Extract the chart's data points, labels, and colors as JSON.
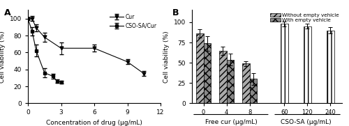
{
  "panel_A": {
    "cur_x": [
      0,
      0.375,
      0.75,
      1.5,
      3,
      6,
      9,
      10.5
    ],
    "cur_y": [
      100,
      100,
      89,
      78,
      65,
      65,
      49,
      35
    ],
    "cur_err": [
      1,
      3,
      4,
      5,
      7,
      4,
      3,
      3
    ],
    "cso_x": [
      0,
      0.375,
      0.75,
      1.5,
      2.25,
      2.625,
      3.0
    ],
    "cso_y": [
      100,
      85,
      62,
      36,
      32,
      26,
      25
    ],
    "cso_err": [
      1,
      5,
      7,
      5,
      3,
      2,
      2
    ],
    "xlabel": "Concentration of drug (μg/mL)",
    "ylabel": "Cell viability (%)",
    "xlim": [
      0,
      12
    ],
    "ylim": [
      0,
      110
    ],
    "xticks": [
      0,
      3,
      6,
      9,
      12
    ],
    "yticks": [
      0,
      20,
      40,
      60,
      80,
      100
    ]
  },
  "panel_B": {
    "categories_free": [
      "0",
      "4",
      "8"
    ],
    "categories_cso": [
      "60",
      "120",
      "240"
    ],
    "without_free": [
      86,
      65,
      49
    ],
    "with_free": [
      74,
      54,
      30
    ],
    "without_cso": [
      98,
      95,
      90
    ],
    "without_free_err": [
      5,
      5,
      3
    ],
    "with_free_err": [
      9,
      7,
      7
    ],
    "without_cso_err": [
      3,
      3,
      4
    ],
    "xlabel_free": "Free cur (μg/mL)",
    "xlabel_cso": "CSO-SA (μg/mL)",
    "ylabel": "Cell viability (%)",
    "ylim": [
      0,
      115
    ],
    "yticks": [
      0,
      25,
      50,
      75,
      100
    ]
  }
}
